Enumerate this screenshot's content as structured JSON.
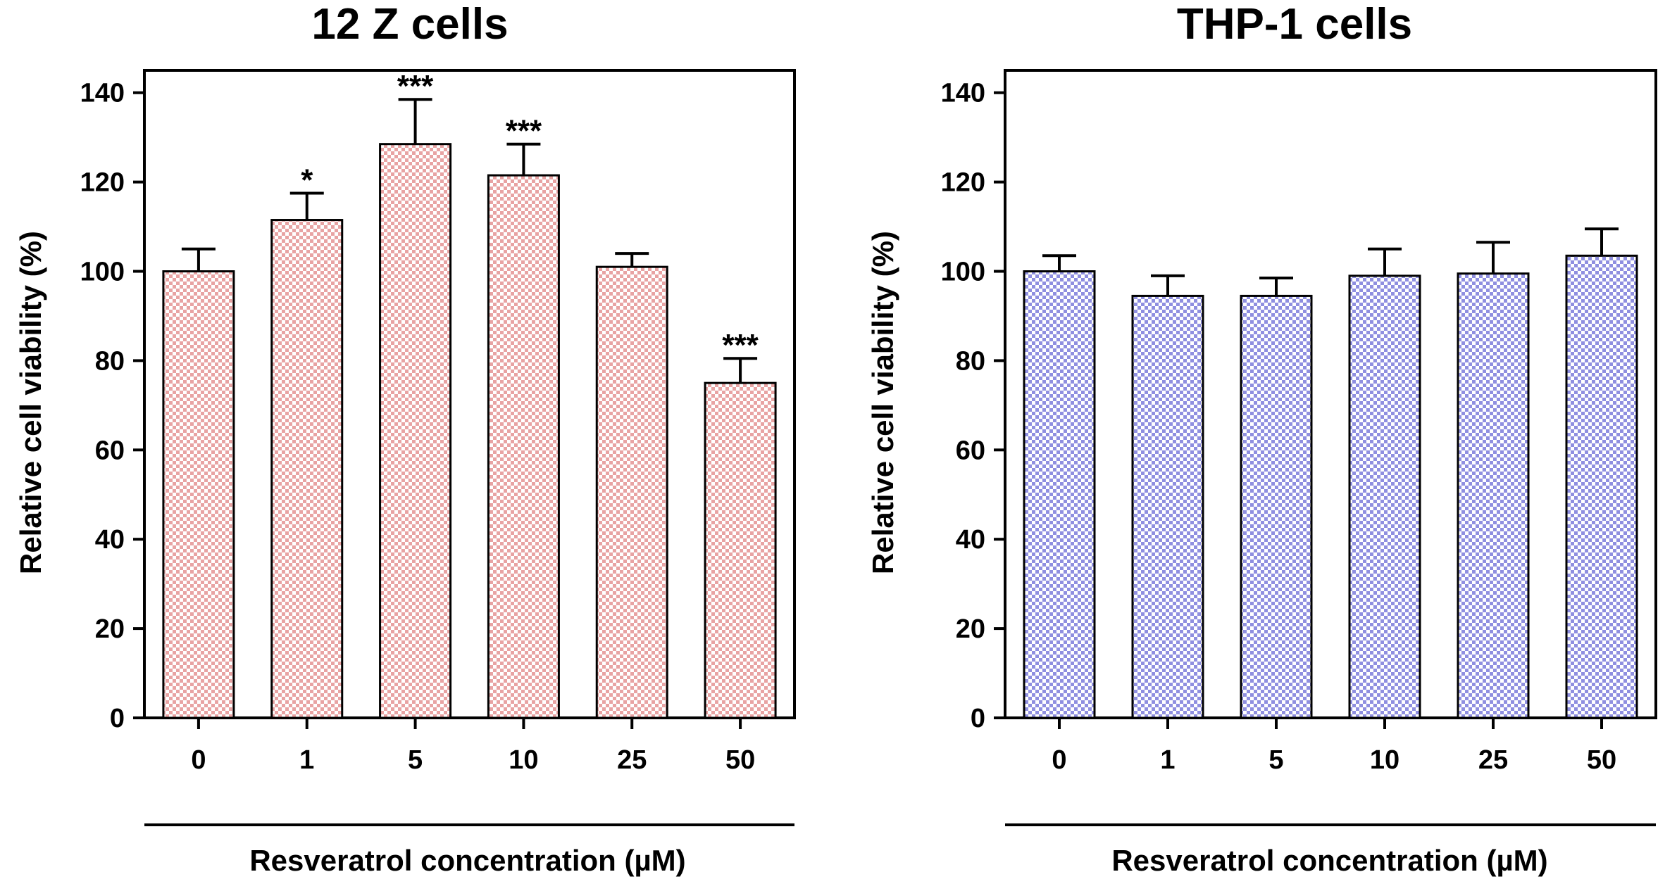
{
  "chart_data": [
    {
      "type": "bar",
      "title": "12 Z cells",
      "xlabel": "Resveratrol concentration (µM)",
      "ylabel": "Relative cell viability (%)",
      "ylim": [
        0,
        145
      ],
      "yticks": [
        "0",
        "20",
        "40",
        "60",
        "80",
        "100",
        "120",
        "140"
      ],
      "categories": [
        "0",
        "1",
        "5",
        "10",
        "25",
        "50"
      ],
      "values": [
        100,
        111.5,
        128.5,
        121.5,
        101,
        75
      ],
      "errors": [
        5,
        6,
        10,
        7,
        3,
        5.5
      ],
      "significance": [
        "",
        "*",
        "***",
        "***",
        "",
        "***"
      ],
      "bar_color": "#e8a3a3",
      "pattern_color": "#ffffff",
      "grid": false
    },
    {
      "type": "bar",
      "title": "THP-1 cells",
      "xlabel": "Resveratrol concentration (µM)",
      "ylabel": "Relative cell viability (%)",
      "ylim": [
        0,
        145
      ],
      "yticks": [
        "0",
        "20",
        "40",
        "60",
        "80",
        "100",
        "120",
        "140"
      ],
      "categories": [
        "0",
        "1",
        "5",
        "10",
        "25",
        "50"
      ],
      "values": [
        100,
        94.5,
        94.5,
        99,
        99.5,
        103.5
      ],
      "errors": [
        3.5,
        4.5,
        4,
        6,
        7,
        6
      ],
      "significance": [
        "",
        "",
        "",
        "",
        "",
        ""
      ],
      "bar_color": "#8f8fe0",
      "pattern_color": "#ffffff",
      "grid": false
    }
  ]
}
